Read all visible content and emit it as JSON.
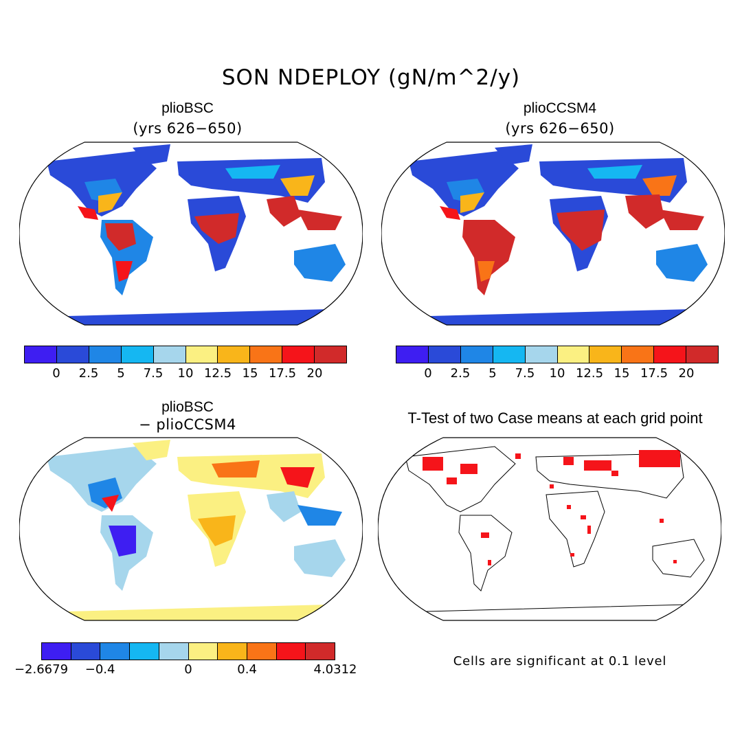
{
  "title": "SON NDEPLOY (gN/m^2/y)",
  "panels": {
    "p1": {
      "name": "plioBSC",
      "subtitle": "(yrs 626−650)"
    },
    "p2": {
      "name": "plioCCSM4",
      "subtitle": "(yrs 626−650)"
    },
    "p3": {
      "name": "plioBSC",
      "subtitle": "− plioCCSM4"
    },
    "p4": {
      "name": "T-Test of two Case means at each grid point",
      "note": "Cells are significant at 0.1 level"
    }
  },
  "colorbar_abs": {
    "ticks": [
      "0",
      "2.5",
      "5",
      "7.5",
      "10",
      "12.5",
      "15",
      "17.5",
      "20"
    ],
    "colors": [
      "#3e1ef2",
      "#2a4ad8",
      "#1f86e6",
      "#15b7f2",
      "#a6d6ec",
      "#fbf082",
      "#f9b51a",
      "#f97417",
      "#f5141a",
      "#d12a2a"
    ]
  },
  "colorbar_diff": {
    "ticks": [
      "−2.6679",
      "−0.4",
      "0",
      "0.4",
      "4.0312"
    ],
    "tick_positions": [
      0,
      2,
      5,
      7,
      10
    ],
    "colors": [
      "#3e1ef2",
      "#2a4ad8",
      "#1f86e6",
      "#15b7f2",
      "#a6d6ec",
      "#fbf082",
      "#f9b51a",
      "#f97417",
      "#f5141a",
      "#d12a2a"
    ]
  }
}
